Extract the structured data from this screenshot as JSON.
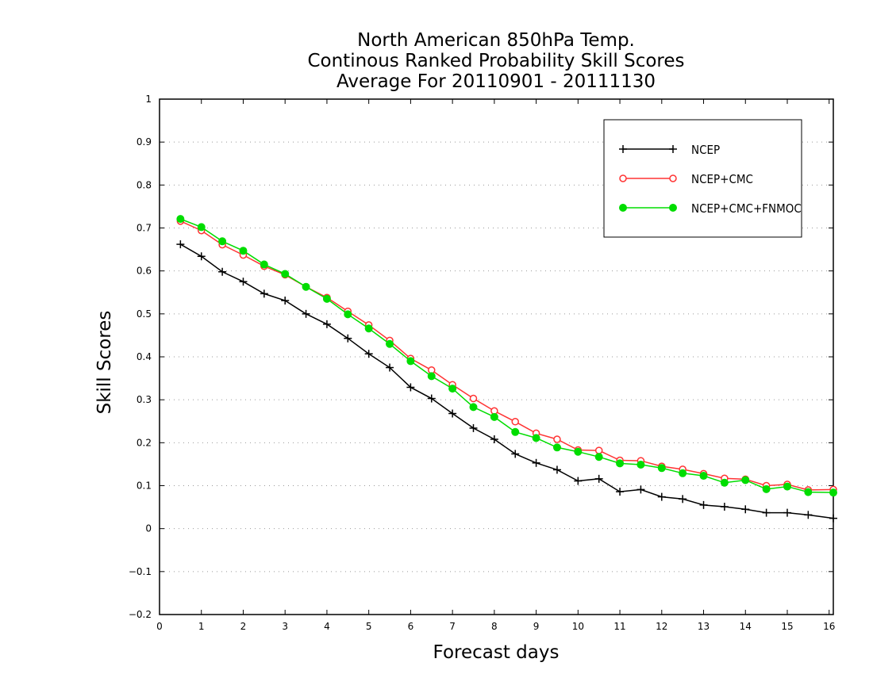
{
  "chart_data": {
    "type": "line",
    "title": [
      "North American 850hPa Temp.",
      "Continous Ranked Probability Skill Scores",
      "Average For 20110901 - 20111130"
    ],
    "xlabel": "Forecast days",
    "ylabel": "Skill Scores",
    "xlim": [
      0,
      16.1
    ],
    "ylim": [
      -0.2,
      1
    ],
    "xticks": [
      "0",
      "1",
      "2",
      "3",
      "4",
      "5",
      "6",
      "7",
      "8",
      "9",
      "10",
      "11",
      "12",
      "13",
      "14",
      "15",
      "16"
    ],
    "yticks": [
      "−0.2",
      "−0.1",
      "0",
      "0.1",
      "0.2",
      "0.3",
      "0.4",
      "0.5",
      "0.6",
      "0.7",
      "0.8",
      "0.9",
      "1"
    ],
    "grid": "horizontal-dotted",
    "legend_position": "top-right",
    "x": [
      0.5,
      1,
      1.5,
      2,
      2.5,
      3,
      3.5,
      4,
      4.5,
      5,
      5.5,
      6,
      6.5,
      7,
      7.5,
      8,
      8.5,
      9,
      9.5,
      10,
      10.5,
      11,
      11.5,
      12,
      12.5,
      13,
      13.5,
      14,
      14.5,
      15,
      15.5,
      16.1
    ],
    "series": [
      {
        "name": "NCEP",
        "color": "#000000",
        "marker": "plus",
        "values": [
          0.662,
          0.634,
          0.598,
          0.575,
          0.547,
          0.531,
          0.5,
          0.476,
          0.443,
          0.407,
          0.375,
          0.329,
          0.303,
          0.268,
          0.234,
          0.208,
          0.174,
          0.153,
          0.137,
          0.111,
          0.116,
          0.086,
          0.091,
          0.074,
          0.069,
          0.055,
          0.051,
          0.045,
          0.037,
          0.037,
          0.032,
          0.024
        ]
      },
      {
        "name": "NCEP+CMC",
        "color": "#ff3333",
        "marker": "open-circle",
        "values": [
          0.716,
          0.694,
          0.661,
          0.637,
          0.611,
          0.591,
          0.563,
          0.538,
          0.506,
          0.474,
          0.438,
          0.396,
          0.369,
          0.335,
          0.303,
          0.274,
          0.249,
          0.222,
          0.208,
          0.183,
          0.182,
          0.159,
          0.158,
          0.145,
          0.138,
          0.128,
          0.117,
          0.115,
          0.1,
          0.103,
          0.09,
          0.091
        ]
      },
      {
        "name": "NCEP+CMC+FNMOC",
        "color": "#00dd00",
        "marker": "filled-circle",
        "values": [
          0.721,
          0.702,
          0.669,
          0.647,
          0.615,
          0.593,
          0.563,
          0.535,
          0.499,
          0.466,
          0.43,
          0.39,
          0.355,
          0.326,
          0.283,
          0.26,
          0.225,
          0.211,
          0.189,
          0.179,
          0.167,
          0.152,
          0.149,
          0.141,
          0.129,
          0.123,
          0.107,
          0.113,
          0.092,
          0.098,
          0.085,
          0.084
        ]
      }
    ]
  }
}
